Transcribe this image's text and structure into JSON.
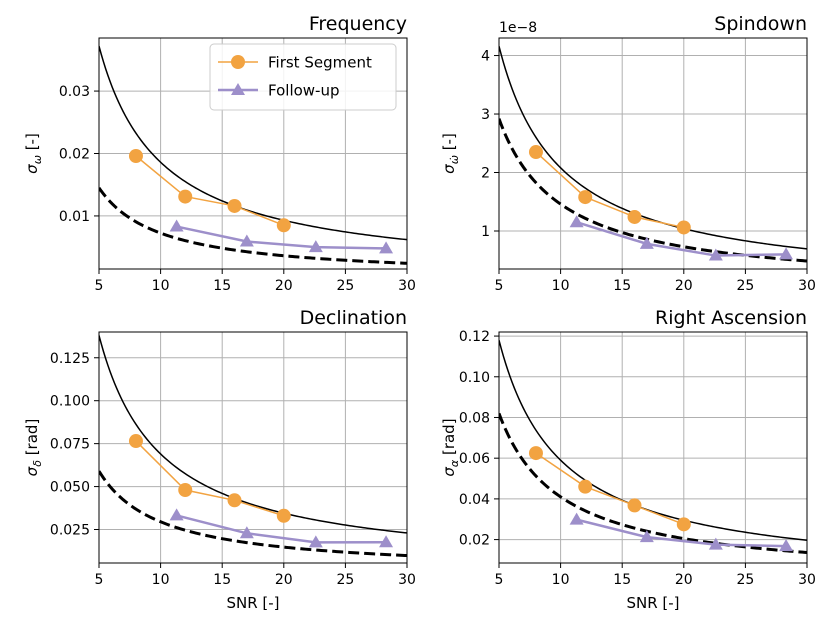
{
  "colors": {
    "first_segment": "#f2a341",
    "follow_up": "#9d8fca",
    "theory": "#000000",
    "grid": "#b0b0b0"
  },
  "legend": {
    "first_segment": "First Segment",
    "follow_up": "Follow-up"
  },
  "chart_data": [
    {
      "type": "line",
      "title": "Frequency",
      "xlabel": "",
      "ylabel": "σ_ω [-]",
      "ylabel_parts": {
        "sym": "σ",
        "sub": "ω",
        "unit": " [-]"
      },
      "xlim": [
        5,
        30
      ],
      "ylim": [
        0.0015,
        0.0385
      ],
      "xticks": [
        5,
        10,
        15,
        20,
        25,
        30
      ],
      "yticks": [
        0.01,
        0.02,
        0.03
      ],
      "ytick_labels": [
        "0.01",
        "0.02",
        "0.03"
      ],
      "offset_text": "",
      "grid": true,
      "legend": "top-right",
      "curves": [
        {
          "name": "theory-solid",
          "style": "solid",
          "k": 0.186,
          "x": [
            5,
            30
          ]
        },
        {
          "name": "theory-dashed",
          "style": "dashed",
          "k": 0.0725,
          "x": [
            5,
            30
          ]
        }
      ],
      "series": [
        {
          "name": "First Segment",
          "x": [
            8,
            12,
            16,
            20
          ],
          "y": [
            0.0196,
            0.0131,
            0.0116,
            0.0085
          ]
        },
        {
          "name": "Follow-up",
          "x": [
            11.3,
            17,
            22.6,
            28.3
          ],
          "y": [
            0.0083,
            0.0059,
            0.005,
            0.0048
          ]
        }
      ]
    },
    {
      "type": "line",
      "title": "Spindown",
      "xlabel": "",
      "ylabel": "σ_ω̇ [-]",
      "ylabel_parts": {
        "sym": "σ",
        "sub": "ω̇",
        "unit": " [-]"
      },
      "xlim": [
        5,
        30
      ],
      "ylim": [
        0.35,
        4.3
      ],
      "xticks": [
        5,
        10,
        15,
        20,
        25,
        30
      ],
      "yticks": [
        1,
        2,
        3,
        4
      ],
      "ytick_labels": [
        "1",
        "2",
        "3",
        "4"
      ],
      "offset_text": "1e−8",
      "grid": true,
      "legend": "",
      "curves": [
        {
          "name": "theory-solid",
          "style": "solid",
          "k": 20.8,
          "x": [
            5,
            30
          ]
        },
        {
          "name": "theory-dashed",
          "style": "dashed",
          "k": 14.6,
          "x": [
            5,
            30
          ]
        }
      ],
      "series": [
        {
          "name": "First Segment",
          "x": [
            8,
            12,
            16,
            20
          ],
          "y": [
            2.35,
            1.58,
            1.24,
            1.06
          ]
        },
        {
          "name": "Follow-up",
          "x": [
            11.3,
            17,
            22.6,
            28.3
          ],
          "y": [
            1.15,
            0.78,
            0.58,
            0.6
          ]
        }
      ]
    },
    {
      "type": "line",
      "title": "Declination",
      "xlabel": "SNR [-]",
      "ylabel": "σ_δ [rad]",
      "ylabel_parts": {
        "sym": "σ",
        "sub": "δ",
        "unit": " [rad]"
      },
      "xlim": [
        5,
        30
      ],
      "ylim": [
        0.0055,
        0.14
      ],
      "xticks": [
        5,
        10,
        15,
        20,
        25,
        30
      ],
      "yticks": [
        0.025,
        0.05,
        0.075,
        0.1,
        0.125
      ],
      "ytick_labels": [
        "0.025",
        "0.050",
        "0.075",
        "0.100",
        "0.125"
      ],
      "offset_text": "",
      "grid": true,
      "legend": "",
      "curves": [
        {
          "name": "theory-solid",
          "style": "solid",
          "k": 0.69,
          "x": [
            5,
            30
          ]
        },
        {
          "name": "theory-dashed",
          "style": "dashed",
          "k": 0.295,
          "x": [
            5,
            30
          ]
        }
      ],
      "series": [
        {
          "name": "First Segment",
          "x": [
            8,
            12,
            16,
            20
          ],
          "y": [
            0.0765,
            0.048,
            0.042,
            0.033
          ]
        },
        {
          "name": "Follow-up",
          "x": [
            11.3,
            17,
            22.6,
            28.3
          ],
          "y": [
            0.0332,
            0.0228,
            0.0175,
            0.0176
          ]
        }
      ]
    },
    {
      "type": "line",
      "title": "Right Ascension",
      "xlabel": "SNR [-]",
      "ylabel": "σ_α [rad]",
      "ylabel_parts": {
        "sym": "σ",
        "sub": "α",
        "unit": " [rad]"
      },
      "xlim": [
        5,
        30
      ],
      "ylim": [
        0.0085,
        0.122
      ],
      "xticks": [
        5,
        10,
        15,
        20,
        25,
        30
      ],
      "yticks": [
        0.02,
        0.04,
        0.06,
        0.08,
        0.1,
        0.12
      ],
      "ytick_labels": [
        "0.02",
        "0.04",
        "0.06",
        "0.08",
        "0.10",
        "0.12"
      ],
      "offset_text": "",
      "grid": true,
      "legend": "",
      "curves": [
        {
          "name": "theory-solid",
          "style": "solid",
          "k": 0.59,
          "x": [
            5,
            30
          ]
        },
        {
          "name": "theory-dashed",
          "style": "dashed",
          "k": 0.41,
          "x": [
            5,
            30
          ]
        }
      ],
      "series": [
        {
          "name": "First Segment",
          "x": [
            8,
            12,
            16,
            20
          ],
          "y": [
            0.0625,
            0.046,
            0.0368,
            0.0275
          ]
        },
        {
          "name": "Follow-up",
          "x": [
            11.3,
            17,
            22.6,
            28.3
          ],
          "y": [
            0.0298,
            0.0212,
            0.0175,
            0.0168
          ]
        }
      ]
    }
  ]
}
